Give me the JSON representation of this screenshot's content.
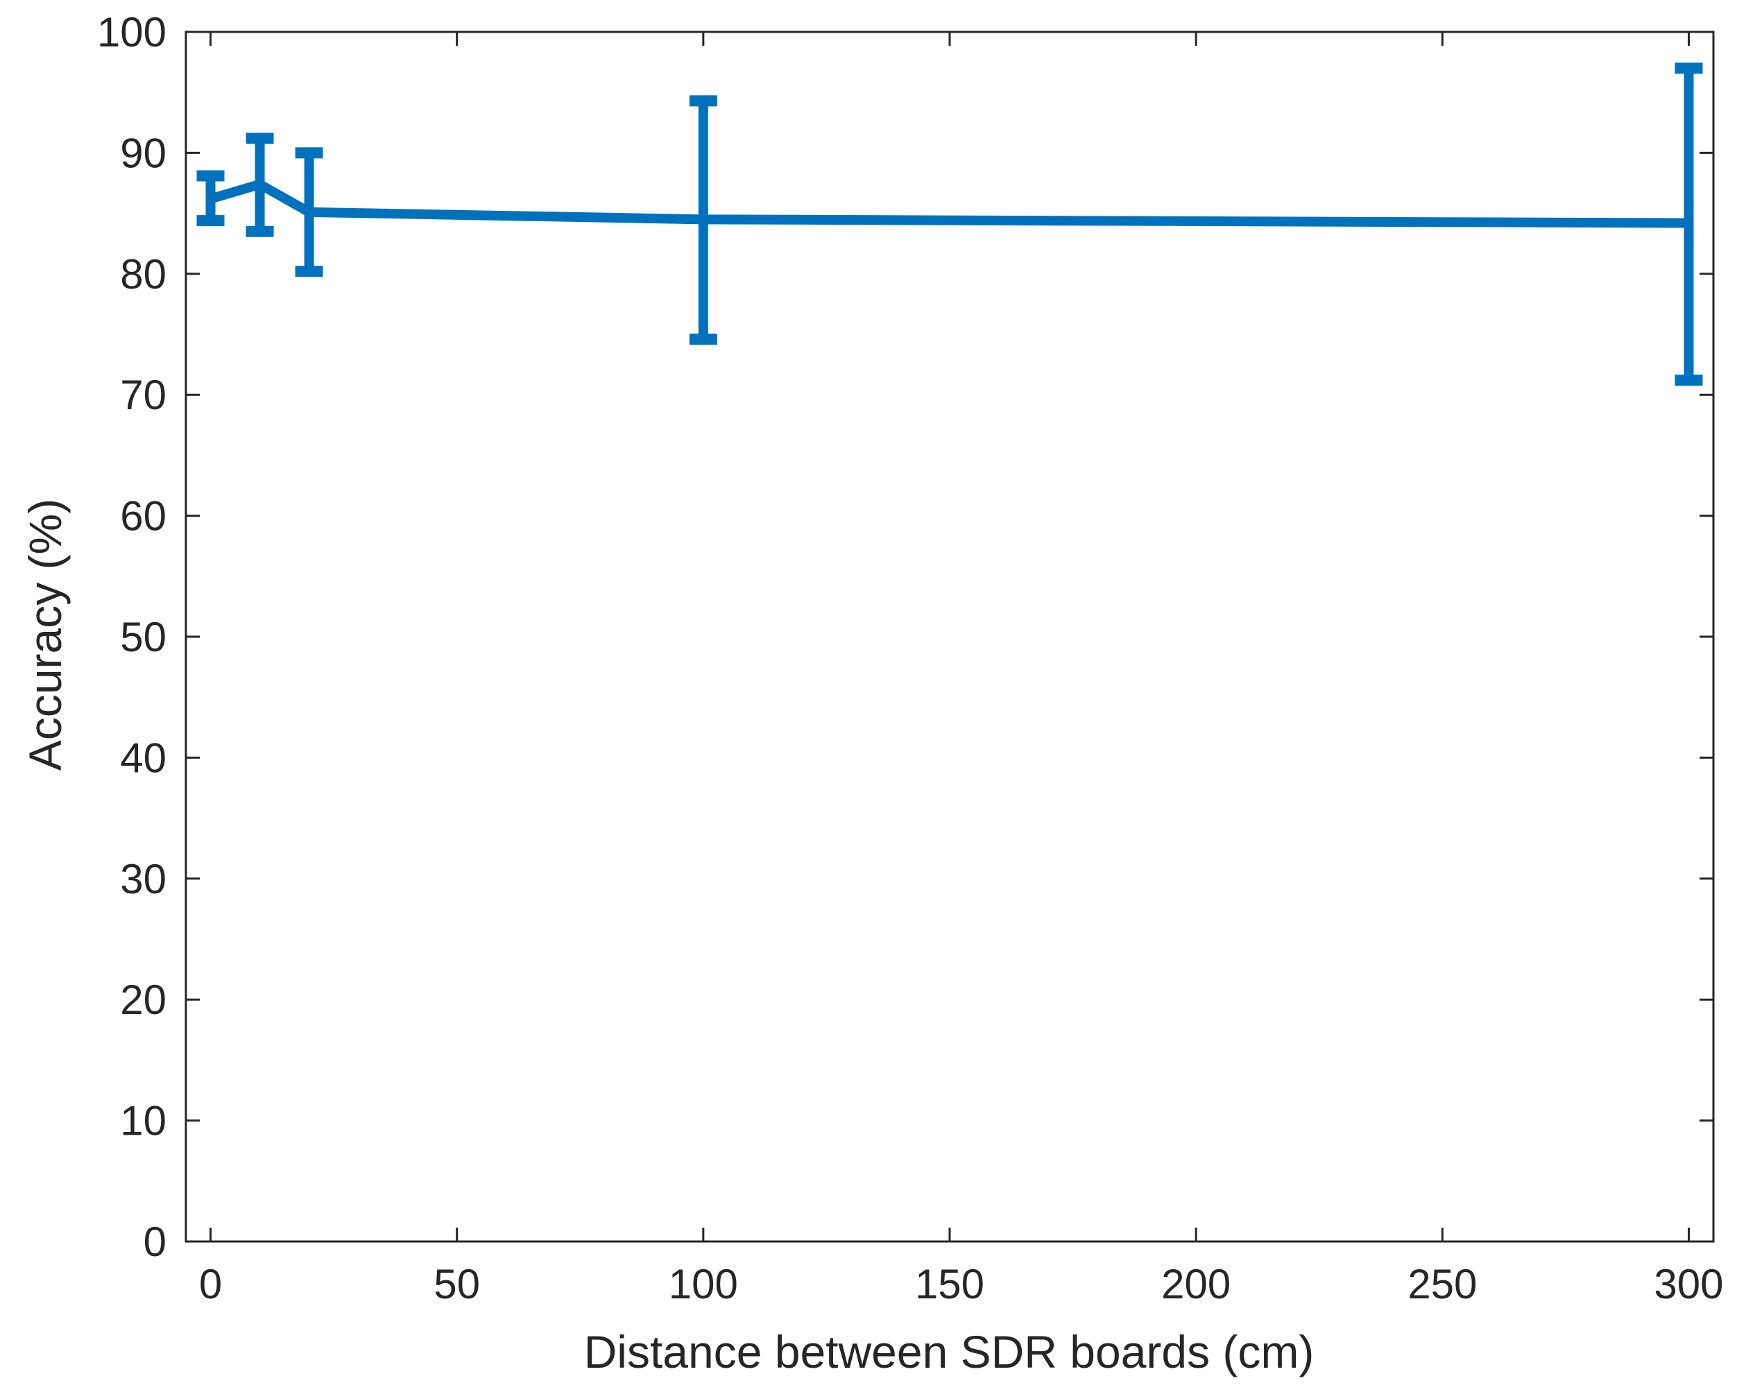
{
  "chart_data": {
    "type": "line",
    "xlabel": "Distance between SDR boards (cm)",
    "ylabel": "Accuracy (%)",
    "xlim": [
      -5,
      305
    ],
    "ylim": [
      0,
      100
    ],
    "xticks": [
      0,
      50,
      100,
      150,
      200,
      250,
      300
    ],
    "yticks": [
      0,
      10,
      20,
      30,
      40,
      50,
      60,
      70,
      80,
      90,
      100
    ],
    "grid": false,
    "series": [
      {
        "color": "#0072BD",
        "x": [
          0,
          10,
          20,
          100,
          300
        ],
        "y": [
          86.2,
          87.4,
          85.1,
          84.5,
          84.2
        ],
        "error_lower": [
          84.4,
          83.5,
          80.2,
          74.6,
          71.2
        ],
        "error_upper": [
          88.1,
          91.2,
          90.0,
          94.3,
          97.0
        ]
      }
    ]
  }
}
